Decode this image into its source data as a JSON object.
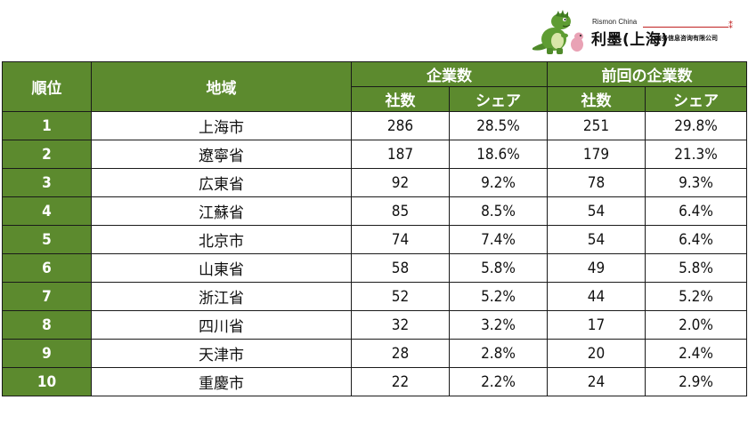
{
  "logo": {
    "en": "Rismon China",
    "main": "利墨(上海)",
    "sub": "商务信息咨询有限公司"
  },
  "chart_data": {
    "type": "table",
    "header": {
      "rank": "順位",
      "region": "地域",
      "group_current": "企業数",
      "group_previous": "前回の企業数",
      "count": "社数",
      "share": "シェア"
    },
    "rows": [
      {
        "rank": "1",
        "region": "上海市",
        "count": "286",
        "share": "28.5%",
        "prev_count": "251",
        "prev_share": "29.8%"
      },
      {
        "rank": "2",
        "region": "遼寧省",
        "count": "187",
        "share": "18.6%",
        "prev_count": "179",
        "prev_share": "21.3%"
      },
      {
        "rank": "3",
        "region": "広東省",
        "count": "92",
        "share": "9.2%",
        "prev_count": "78",
        "prev_share": "9.3%"
      },
      {
        "rank": "4",
        "region": "江蘇省",
        "count": "85",
        "share": "8.5%",
        "prev_count": "54",
        "prev_share": "6.4%"
      },
      {
        "rank": "5",
        "region": "北京市",
        "count": "74",
        "share": "7.4%",
        "prev_count": "54",
        "prev_share": "6.4%"
      },
      {
        "rank": "6",
        "region": "山東省",
        "count": "58",
        "share": "5.8%",
        "prev_count": "49",
        "prev_share": "5.8%"
      },
      {
        "rank": "7",
        "region": "浙江省",
        "count": "52",
        "share": "5.2%",
        "prev_count": "44",
        "prev_share": "5.2%"
      },
      {
        "rank": "8",
        "region": "四川省",
        "count": "32",
        "share": "3.2%",
        "prev_count": "17",
        "prev_share": "2.0%"
      },
      {
        "rank": "9",
        "region": "天津市",
        "count": "28",
        "share": "2.8%",
        "prev_count": "20",
        "prev_share": "2.4%"
      },
      {
        "rank": "10",
        "region": "重慶市",
        "count": "22",
        "share": "2.2%",
        "prev_count": "24",
        "prev_share": "2.9%"
      }
    ]
  },
  "colors": {
    "header_green": "#5c8a2e",
    "logo_red": "#c02020"
  }
}
